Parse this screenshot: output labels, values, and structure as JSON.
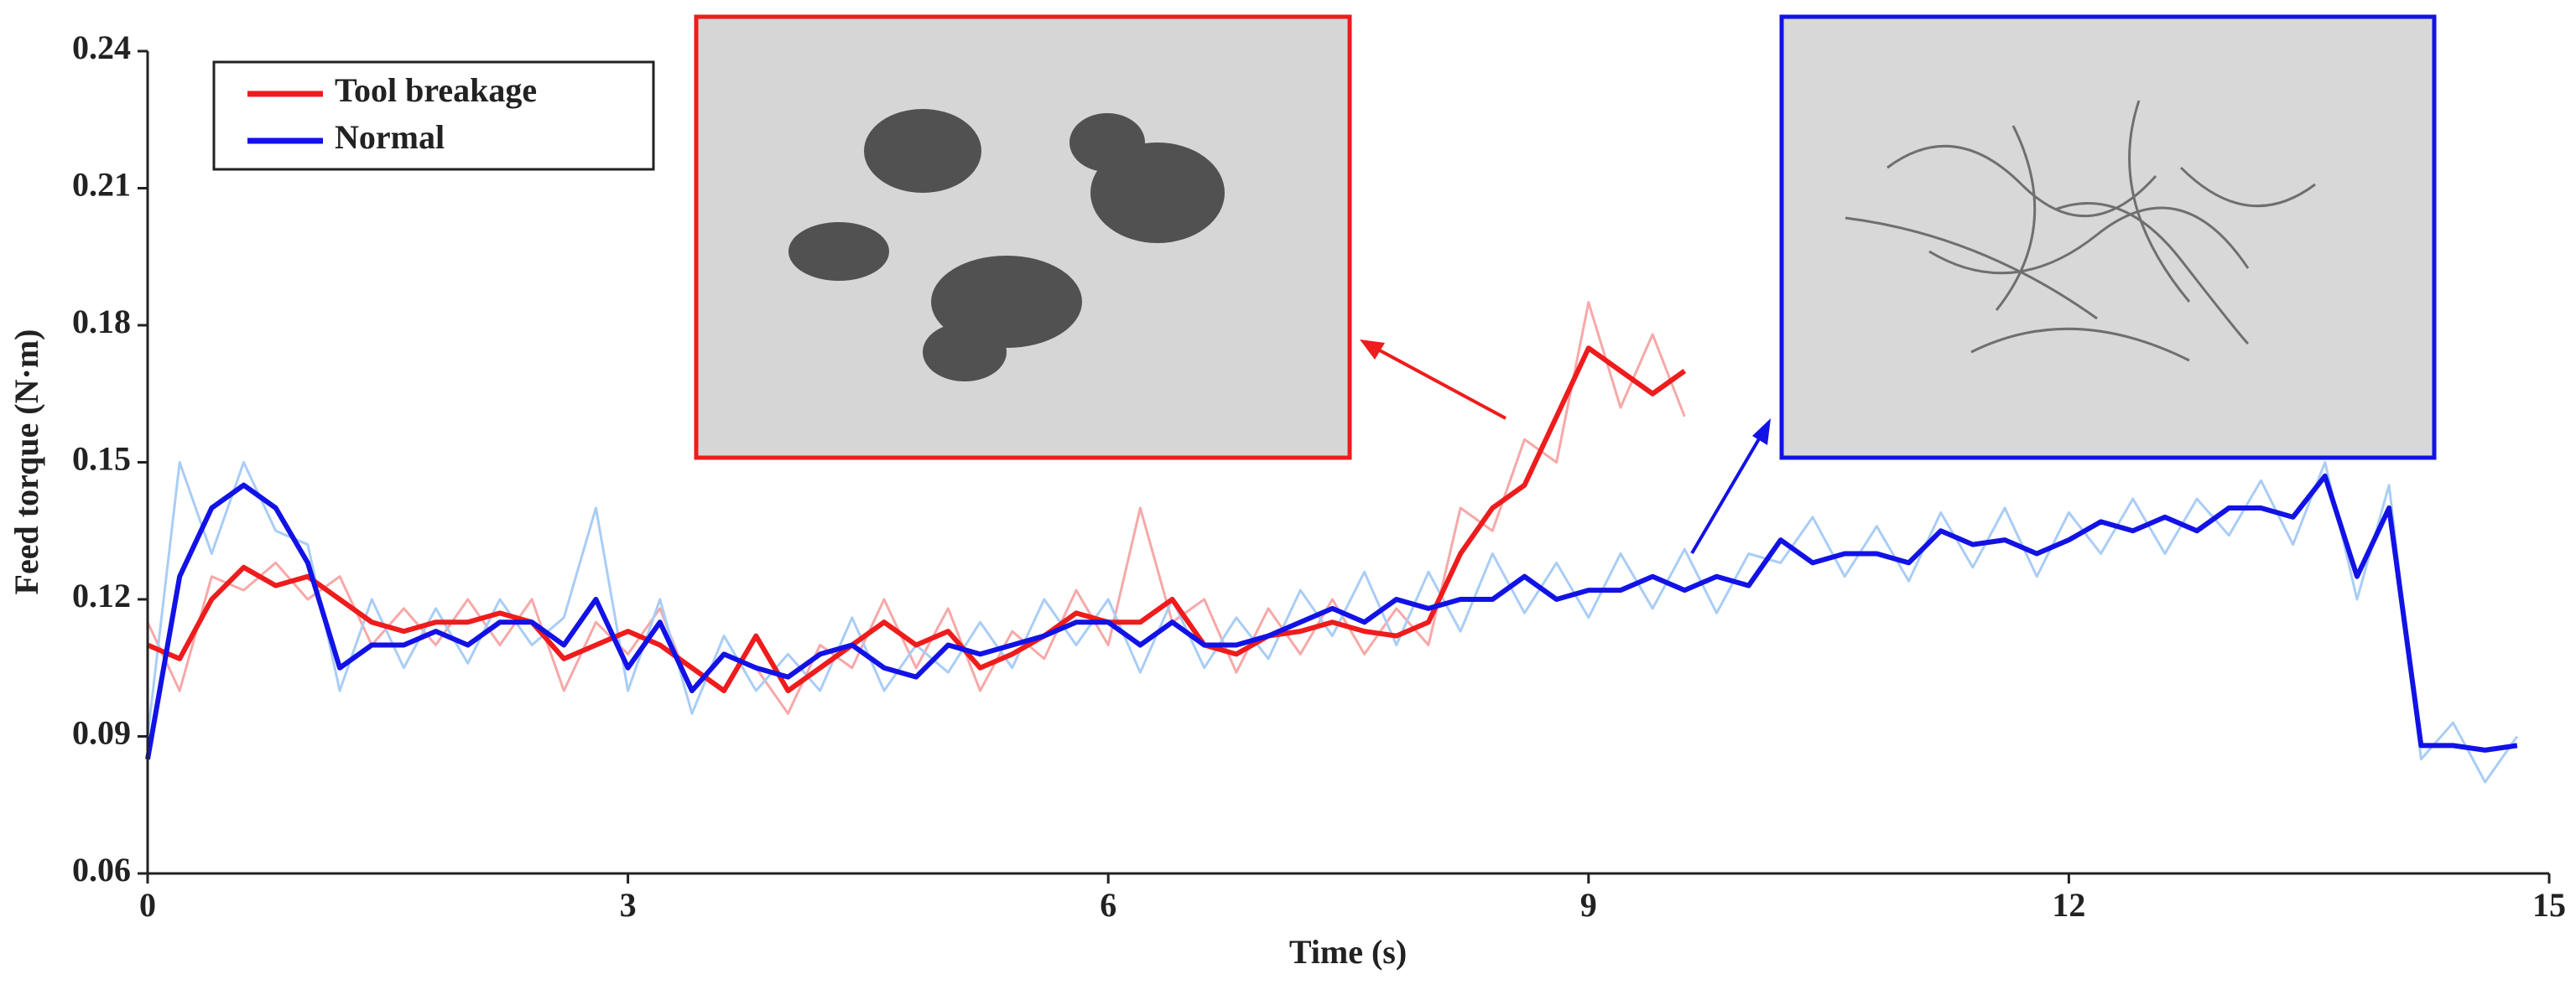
{
  "chart_data": {
    "type": "line",
    "x_label": "Time (s)",
    "y_label": "Feed torque (N·m)",
    "xlim": [
      0,
      15
    ],
    "xticks": [
      0,
      3,
      6,
      9,
      12,
      15
    ],
    "ylim": [
      0.06,
      0.24
    ],
    "yticks": [
      0.06,
      0.09,
      0.12,
      0.15,
      0.18,
      0.21,
      0.24
    ],
    "legend": "upper left",
    "x": [
      0,
      0.2,
      0.4,
      0.6,
      0.8,
      1,
      1.2,
      1.4,
      1.6,
      1.8,
      2,
      2.2,
      2.4,
      2.6,
      2.8,
      3,
      3.2,
      3.4,
      3.6,
      3.8,
      4,
      4.2,
      4.4,
      4.6,
      4.8,
      5,
      5.2,
      5.4,
      5.6,
      5.8,
      6,
      6.2,
      6.4,
      6.6,
      6.8,
      7,
      7.2,
      7.4,
      7.6,
      7.8,
      8,
      8.2,
      8.4,
      8.6,
      8.8,
      9,
      9.2,
      9.4,
      9.6,
      9.8,
      10,
      10.2,
      10.4,
      10.6,
      10.8,
      11,
      11.2,
      11.4,
      11.6,
      11.8,
      12,
      12.2,
      12.4,
      12.6,
      12.8,
      13,
      13.2,
      13.4,
      13.6,
      13.8,
      14,
      14.2,
      14.4,
      14.6,
      14.8
    ],
    "series": [
      {
        "name": "Tool breakage",
        "color": "#ee1c1c",
        "raw_color": "#f7a8a8",
        "values": [
          0.11,
          0.107,
          0.12,
          0.127,
          0.123,
          0.125,
          0.12,
          0.115,
          0.113,
          0.115,
          0.115,
          0.117,
          0.115,
          0.107,
          0.11,
          0.113,
          0.11,
          0.105,
          0.1,
          0.112,
          0.1,
          0.105,
          0.11,
          0.115,
          0.11,
          0.113,
          0.105,
          0.108,
          0.112,
          0.117,
          0.115,
          0.115,
          0.12,
          0.11,
          0.108,
          0.112,
          0.113,
          0.115,
          0.113,
          0.112,
          0.115,
          0.13,
          0.14,
          0.145,
          0.16,
          0.175,
          0.17,
          0.165,
          0.17,
          null,
          null,
          null,
          null,
          null,
          null,
          null,
          null,
          null,
          null,
          null,
          null,
          null,
          null,
          null,
          null,
          null,
          null,
          null,
          null,
          null,
          null,
          null,
          null,
          null,
          null
        ],
        "raw_values": [
          0.115,
          0.1,
          0.125,
          0.122,
          0.128,
          0.12,
          0.125,
          0.11,
          0.118,
          0.11,
          0.12,
          0.11,
          0.12,
          0.1,
          0.115,
          0.108,
          0.118,
          0.1,
          0.108,
          0.105,
          0.095,
          0.11,
          0.105,
          0.12,
          0.105,
          0.118,
          0.1,
          0.113,
          0.107,
          0.122,
          0.11,
          0.14,
          0.115,
          0.12,
          0.104,
          0.118,
          0.108,
          0.12,
          0.108,
          0.118,
          0.11,
          0.14,
          0.135,
          0.155,
          0.15,
          0.185,
          0.162,
          0.178,
          0.16,
          null,
          null,
          null,
          null,
          null,
          null,
          null,
          null,
          null,
          null,
          null,
          null,
          null,
          null,
          null,
          null,
          null,
          null,
          null,
          null,
          null,
          null,
          null,
          null,
          null,
          null
        ]
      },
      {
        "name": "Normal",
        "color": "#1212e6",
        "raw_color": "#a9cdf5",
        "values": [
          0.085,
          0.125,
          0.14,
          0.145,
          0.14,
          0.128,
          0.105,
          0.11,
          0.11,
          0.113,
          0.11,
          0.115,
          0.115,
          0.11,
          0.12,
          0.105,
          0.115,
          0.1,
          0.108,
          0.105,
          0.103,
          0.108,
          0.11,
          0.105,
          0.103,
          0.11,
          0.108,
          0.11,
          0.112,
          0.115,
          0.115,
          0.11,
          0.115,
          0.11,
          0.11,
          0.112,
          0.115,
          0.118,
          0.115,
          0.12,
          0.118,
          0.12,
          0.12,
          0.125,
          0.12,
          0.122,
          0.122,
          0.125,
          0.122,
          0.125,
          0.123,
          0.133,
          0.128,
          0.13,
          0.13,
          0.128,
          0.135,
          0.132,
          0.133,
          0.13,
          0.133,
          0.137,
          0.135,
          0.138,
          0.135,
          0.14,
          0.14,
          0.138,
          0.147,
          0.125,
          0.14,
          0.088,
          0.088,
          0.087,
          0.088
        ],
        "raw_values": [
          0.09,
          0.15,
          0.13,
          0.15,
          0.135,
          0.132,
          0.1,
          0.12,
          0.105,
          0.118,
          0.106,
          0.12,
          0.11,
          0.116,
          0.14,
          0.1,
          0.12,
          0.095,
          0.112,
          0.1,
          0.108,
          0.1,
          0.116,
          0.1,
          0.11,
          0.104,
          0.115,
          0.105,
          0.12,
          0.11,
          0.12,
          0.104,
          0.12,
          0.105,
          0.116,
          0.107,
          0.122,
          0.112,
          0.126,
          0.11,
          0.126,
          0.113,
          0.13,
          0.117,
          0.128,
          0.116,
          0.13,
          0.118,
          0.131,
          0.117,
          0.13,
          0.128,
          0.138,
          0.125,
          0.136,
          0.124,
          0.139,
          0.127,
          0.14,
          0.125,
          0.139,
          0.13,
          0.142,
          0.13,
          0.142,
          0.134,
          0.146,
          0.132,
          0.15,
          0.12,
          0.145,
          0.085,
          0.093,
          0.08,
          0.09
        ]
      }
    ]
  }
}
